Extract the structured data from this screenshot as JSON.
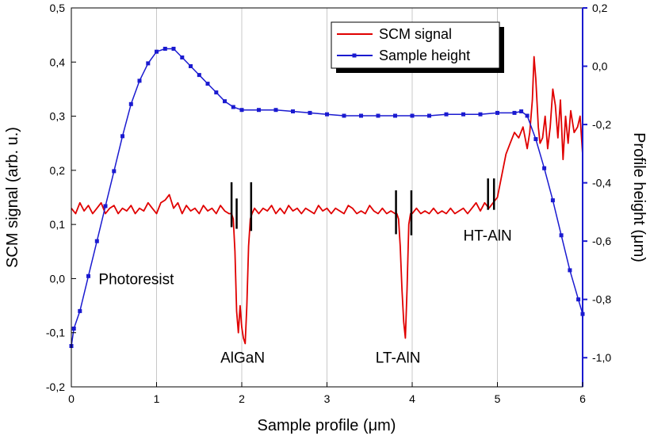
{
  "chart_data": {
    "type": "line",
    "title": "",
    "xlabel": "Sample profile (μm)",
    "ylabel_left": "SCM signal (arb. u.)",
    "ylabel_right": "Profile height (μm)",
    "xlim": [
      0,
      6
    ],
    "ylim_left": [
      -0.2,
      0.5
    ],
    "ylim_right": [
      -1.1,
      0.2
    ],
    "x_ticks": [
      "0",
      "1",
      "2",
      "3",
      "4",
      "5",
      "6"
    ],
    "y_left_ticks": [
      "-0,2",
      "-0,1",
      "0,0",
      "0,1",
      "0,2",
      "0,3",
      "0,4",
      "0,5"
    ],
    "y_right_ticks": [
      "-1,0",
      "-0,8",
      "-0,6",
      "-0,4",
      "-0,2",
      "0,0",
      "0,2"
    ],
    "grid": "vertical",
    "legend_position": "top-right",
    "colors": {
      "scm": "#e00000",
      "height": "#1a1ad0",
      "left_axis": "#000000",
      "right_axis": "#1a1ad0"
    },
    "annotations": [
      {
        "text": "Photoresist",
        "x": 0.32,
        "y": -0.01
      },
      {
        "text": "AlGaN",
        "x": 1.75,
        "y": -0.155
      },
      {
        "text": "LT-AlN",
        "x": 3.57,
        "y": -0.155
      },
      {
        "text": "HT-AlN",
        "x": 4.6,
        "y": 0.07
      }
    ],
    "markers": [
      {
        "x": 1.88,
        "y_top": 0.178,
        "y_bottom": 0.095
      },
      {
        "x": 1.94,
        "y_top": 0.148,
        "y_bottom": 0.092
      },
      {
        "x": 2.11,
        "y_top": 0.178,
        "y_bottom": 0.088
      },
      {
        "x": 3.81,
        "y_top": 0.163,
        "y_bottom": 0.082
      },
      {
        "x": 3.99,
        "y_top": 0.163,
        "y_bottom": 0.08
      },
      {
        "x": 4.89,
        "y_top": 0.185,
        "y_bottom": 0.127
      },
      {
        "x": 4.96,
        "y_top": 0.185,
        "y_bottom": 0.127
      }
    ],
    "series": [
      {
        "name": "SCM signal",
        "axis": "left",
        "color": "#e00000",
        "x": [
          0,
          0.05,
          0.1,
          0.15,
          0.2,
          0.25,
          0.3,
          0.35,
          0.4,
          0.45,
          0.5,
          0.55,
          0.6,
          0.65,
          0.7,
          0.75,
          0.8,
          0.85,
          0.9,
          0.95,
          1.0,
          1.05,
          1.1,
          1.15,
          1.2,
          1.25,
          1.3,
          1.35,
          1.4,
          1.45,
          1.5,
          1.55,
          1.6,
          1.65,
          1.7,
          1.75,
          1.8,
          1.85,
          1.88,
          1.9,
          1.92,
          1.94,
          1.96,
          1.98,
          2.0,
          2.02,
          2.04,
          2.06,
          2.08,
          2.1,
          2.12,
          2.15,
          2.2,
          2.25,
          2.3,
          2.35,
          2.4,
          2.45,
          2.5,
          2.55,
          2.6,
          2.65,
          2.7,
          2.75,
          2.8,
          2.85,
          2.9,
          2.95,
          3.0,
          3.05,
          3.1,
          3.15,
          3.2,
          3.25,
          3.3,
          3.35,
          3.4,
          3.45,
          3.5,
          3.55,
          3.6,
          3.65,
          3.7,
          3.75,
          3.8,
          3.82,
          3.84,
          3.86,
          3.88,
          3.9,
          3.92,
          3.94,
          3.96,
          3.98,
          4.0,
          4.05,
          4.1,
          4.15,
          4.2,
          4.25,
          4.3,
          4.35,
          4.4,
          4.45,
          4.5,
          4.55,
          4.6,
          4.65,
          4.7,
          4.75,
          4.8,
          4.85,
          4.9,
          4.95,
          5.0,
          5.05,
          5.1,
          5.15,
          5.2,
          5.25,
          5.3,
          5.35,
          5.38,
          5.41,
          5.43,
          5.45,
          5.48,
          5.5,
          5.53,
          5.56,
          5.59,
          5.62,
          5.65,
          5.68,
          5.71,
          5.74,
          5.77,
          5.8,
          5.83,
          5.86,
          5.9,
          5.94,
          5.97,
          6.0
        ],
        "values": [
          0.13,
          0.12,
          0.14,
          0.125,
          0.135,
          0.12,
          0.13,
          0.14,
          0.12,
          0.13,
          0.135,
          0.12,
          0.13,
          0.125,
          0.135,
          0.12,
          0.13,
          0.125,
          0.14,
          0.13,
          0.12,
          0.14,
          0.145,
          0.155,
          0.13,
          0.14,
          0.12,
          0.135,
          0.125,
          0.13,
          0.12,
          0.135,
          0.125,
          0.13,
          0.12,
          0.135,
          0.125,
          0.12,
          0.12,
          0.11,
          0.05,
          -0.06,
          -0.1,
          -0.05,
          -0.09,
          -0.11,
          -0.12,
          -0.05,
          0.06,
          0.11,
          0.12,
          0.13,
          0.12,
          0.13,
          0.125,
          0.135,
          0.12,
          0.13,
          0.12,
          0.135,
          0.125,
          0.13,
          0.12,
          0.13,
          0.125,
          0.12,
          0.135,
          0.125,
          0.13,
          0.12,
          0.13,
          0.125,
          0.12,
          0.135,
          0.13,
          0.12,
          0.125,
          0.12,
          0.135,
          0.125,
          0.12,
          0.13,
          0.12,
          0.125,
          0.12,
          0.12,
          0.11,
          0.06,
          -0.02,
          -0.08,
          -0.11,
          -0.02,
          0.1,
          0.12,
          0.12,
          0.13,
          0.12,
          0.125,
          0.12,
          0.13,
          0.12,
          0.125,
          0.12,
          0.13,
          0.12,
          0.125,
          0.13,
          0.12,
          0.13,
          0.14,
          0.125,
          0.14,
          0.13,
          0.14,
          0.15,
          0.19,
          0.23,
          0.25,
          0.27,
          0.26,
          0.28,
          0.24,
          0.27,
          0.33,
          0.41,
          0.37,
          0.28,
          0.25,
          0.26,
          0.3,
          0.24,
          0.28,
          0.35,
          0.32,
          0.26,
          0.33,
          0.22,
          0.3,
          0.25,
          0.31,
          0.27,
          0.28,
          0.3,
          0.23
        ]
      },
      {
        "name": "Sample height",
        "axis": "right",
        "color": "#1a1ad0",
        "x": [
          0,
          0.03,
          0.1,
          0.2,
          0.3,
          0.4,
          0.5,
          0.6,
          0.7,
          0.8,
          0.9,
          1.0,
          1.1,
          1.2,
          1.3,
          1.4,
          1.5,
          1.6,
          1.7,
          1.8,
          1.9,
          2.0,
          2.2,
          2.4,
          2.6,
          2.8,
          3.0,
          3.2,
          3.4,
          3.6,
          3.8,
          4.0,
          4.2,
          4.4,
          4.6,
          4.8,
          5.0,
          5.2,
          5.28,
          5.35,
          5.45,
          5.55,
          5.65,
          5.75,
          5.85,
          5.95,
          6.0
        ],
        "values": [
          -0.96,
          -0.9,
          -0.84,
          -0.72,
          -0.6,
          -0.48,
          -0.36,
          -0.24,
          -0.13,
          -0.05,
          0.01,
          0.05,
          0.06,
          0.06,
          0.03,
          0.0,
          -0.03,
          -0.06,
          -0.09,
          -0.12,
          -0.14,
          -0.15,
          -0.15,
          -0.15,
          -0.155,
          -0.16,
          -0.165,
          -0.17,
          -0.17,
          -0.17,
          -0.17,
          -0.17,
          -0.17,
          -0.165,
          -0.165,
          -0.165,
          -0.16,
          -0.16,
          -0.155,
          -0.17,
          -0.25,
          -0.35,
          -0.46,
          -0.58,
          -0.7,
          -0.8,
          -0.85
        ]
      }
    ]
  }
}
